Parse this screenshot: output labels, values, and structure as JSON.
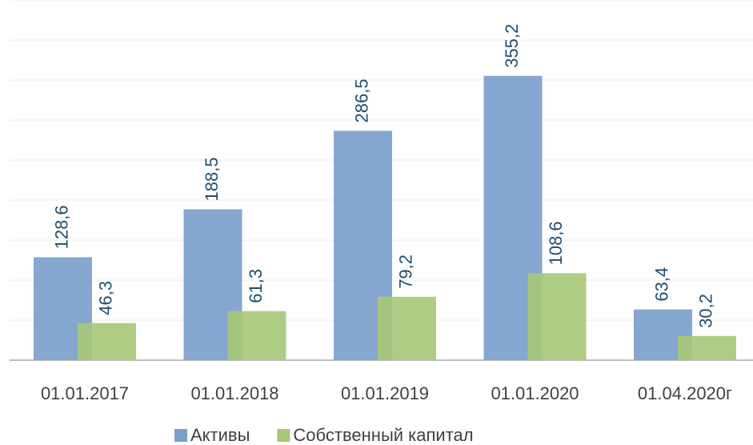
{
  "chart_data": {
    "type": "bar",
    "categories": [
      "01.01.2017",
      "01.01.2018",
      "01.01.2019",
      "01.01.2020",
      "01.04.2020г"
    ],
    "series": [
      {
        "name": "Активы",
        "color": "#7b9fcc",
        "values": [
          128.6,
          188.5,
          286.5,
          355.2,
          63.4
        ],
        "value_labels": [
          "128,6",
          "188,5",
          "286,5",
          "355,2",
          "63,4"
        ]
      },
      {
        "name": "Собственный капитал",
        "color": "#a7c878",
        "values": [
          46.3,
          61.3,
          79.2,
          108.6,
          30.2
        ],
        "value_labels": [
          "46,3",
          "61,3",
          "79,2",
          "108,6",
          "30,2"
        ]
      }
    ],
    "ylim": [
      0,
      450
    ],
    "yticks": [
      0,
      50,
      100,
      150,
      200,
      250,
      300,
      350,
      400,
      450
    ],
    "grid": true
  }
}
